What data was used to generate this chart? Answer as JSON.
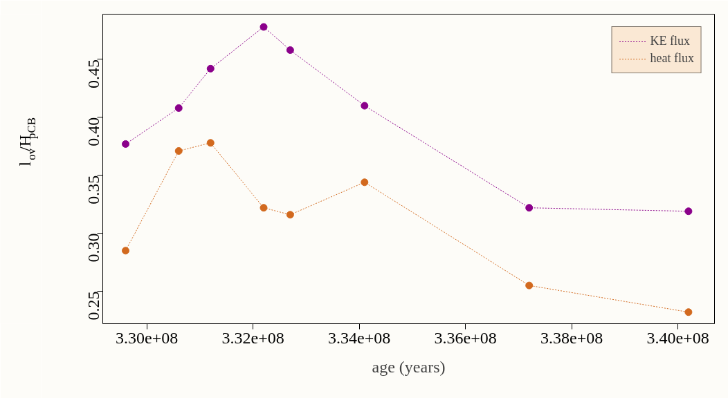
{
  "chart_data": {
    "type": "line",
    "xlabel": "age (years)",
    "ylabel": "l$_{ov}$/H$_{pCB}$",
    "x": [
      329600000,
      330600000,
      331200000,
      332200000,
      332700000,
      334100000,
      337200000,
      340200000
    ],
    "series": [
      {
        "name": "KE flux",
        "color": "#8b008b",
        "values": [
          0.377,
          0.408,
          0.442,
          0.478,
          0.458,
          0.41,
          0.322,
          0.319
        ]
      },
      {
        "name": "heat flux",
        "color": "#d2691e",
        "values": [
          0.285,
          0.371,
          0.378,
          0.322,
          0.316,
          0.344,
          0.255,
          0.232
        ]
      }
    ],
    "xlim": [
      329170000,
      340690000
    ],
    "ylim": [
      0.222,
      0.489
    ],
    "xticks": [
      {
        "value": 330000000,
        "label": "3.30e+08"
      },
      {
        "value": 332000000,
        "label": "3.32e+08"
      },
      {
        "value": 334000000,
        "label": "3.34e+08"
      },
      {
        "value": 336000000,
        "label": "3.36e+08"
      },
      {
        "value": 338000000,
        "label": "3.38e+08"
      },
      {
        "value": 340000000,
        "label": "3.40e+08"
      }
    ],
    "yticks": [
      {
        "value": 0.25,
        "label": "0.25"
      },
      {
        "value": 0.3,
        "label": "0.30"
      },
      {
        "value": 0.35,
        "label": "0.35"
      },
      {
        "value": 0.4,
        "label": "0.40"
      },
      {
        "value": 0.45,
        "label": "0.45"
      }
    ],
    "marker": "circle",
    "line_style": "dotted",
    "grid": false,
    "legend": "top right"
  }
}
